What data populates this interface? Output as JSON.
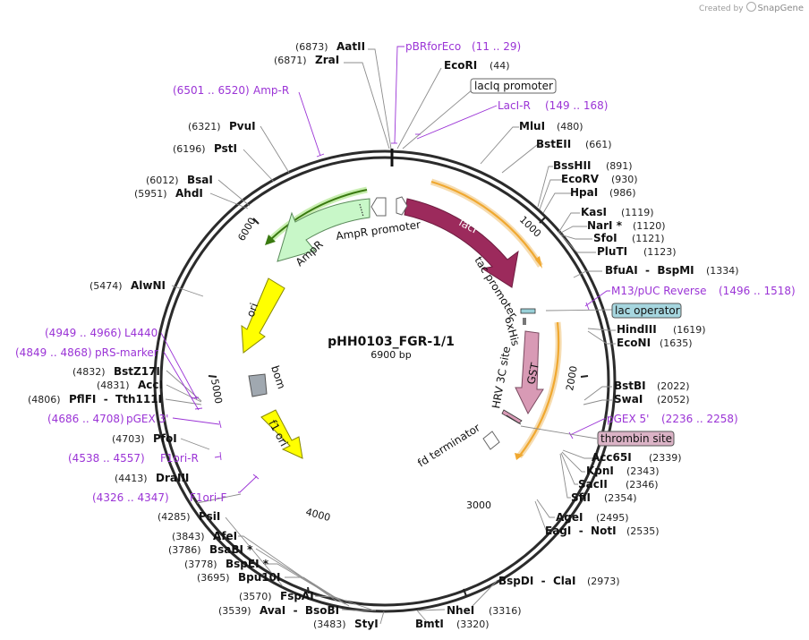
{
  "credit": {
    "prefix": "Created by",
    "brand": "SnapGene"
  },
  "plasmid": {
    "name": "pHH0103_FGR-1/1",
    "size_label": "6900 bp",
    "length": 6900
  },
  "ticks": [
    "1000",
    "2000",
    "3000",
    "4000",
    "5000",
    "6000"
  ],
  "colors": {
    "backbone": "#2b2b2b",
    "primer": "#9b34d6",
    "lacI": "#9c2a5c",
    "ampR": "#c8f7c8",
    "ori": "#ffff00",
    "f1ori": "#ffff00",
    "gst": "#d89ab5",
    "bom": "#a0a8b0",
    "orange_arc": "#f0a830",
    "green_arc": "#3a7a10"
  },
  "sites": [
    {
      "name": "AatII",
      "pos": "(6873)",
      "side": "left"
    },
    {
      "name": "ZraI",
      "pos": "(6871)",
      "side": "left"
    },
    {
      "name": "EcoRI",
      "pos": "(44)",
      "side": "right"
    },
    {
      "name": "MluI",
      "pos": "(480)",
      "side": "right"
    },
    {
      "name": "BstEII",
      "pos": "(661)",
      "side": "right"
    },
    {
      "name": "BssHII",
      "pos": "(891)",
      "side": "right"
    },
    {
      "name": "EcoRV",
      "pos": "(930)",
      "side": "right"
    },
    {
      "name": "HpaI",
      "pos": "(986)",
      "side": "right"
    },
    {
      "name": "KasI",
      "pos": "(1119)",
      "side": "right"
    },
    {
      "name": "NarI *",
      "pos": "(1120)",
      "side": "right"
    },
    {
      "name": "SfoI",
      "pos": "(1121)",
      "side": "right"
    },
    {
      "name": "PluTI",
      "pos": "(1123)",
      "side": "right"
    },
    {
      "name": "BfuAI  -  BspMI",
      "pos": "(1334)",
      "side": "right"
    },
    {
      "name": "HindIII",
      "pos": "(1619)",
      "side": "right"
    },
    {
      "name": "EcoNI",
      "pos": "(1635)",
      "side": "right"
    },
    {
      "name": "BstBI",
      "pos": "(2022)",
      "side": "right"
    },
    {
      "name": "SwaI",
      "pos": "(2052)",
      "side": "right"
    },
    {
      "name": "Acc65I",
      "pos": "(2339)",
      "side": "right"
    },
    {
      "name": "KpnI",
      "pos": "(2343)",
      "side": "right"
    },
    {
      "name": "SacII",
      "pos": "(2346)",
      "side": "right"
    },
    {
      "name": "SfiI",
      "pos": "(2354)",
      "side": "right"
    },
    {
      "name": "AgeI",
      "pos": "(2495)",
      "side": "right"
    },
    {
      "name": "EagI  -  NotI",
      "pos": "(2535)",
      "side": "right"
    },
    {
      "name": "BspDI  -  ClaI",
      "pos": "(2973)",
      "side": "right"
    },
    {
      "name": "NheI",
      "pos": "(3316)",
      "side": "right"
    },
    {
      "name": "BmtI",
      "pos": "(3320)",
      "side": "right"
    },
    {
      "name": "StyI",
      "pos": "(3483)",
      "side": "left"
    },
    {
      "name": "AvaI  -  BsoBI",
      "pos": "(3539)",
      "side": "left"
    },
    {
      "name": "FspAI",
      "pos": "(3570)",
      "side": "left"
    },
    {
      "name": "Bpu10I",
      "pos": "(3695)",
      "side": "left"
    },
    {
      "name": "BspEI *",
      "pos": "(3778)",
      "side": "left"
    },
    {
      "name": "BsaBI *",
      "pos": "(3786)",
      "side": "left"
    },
    {
      "name": "AfeI",
      "pos": "(3843)",
      "side": "left"
    },
    {
      "name": "PsiI",
      "pos": "(4285)",
      "side": "left"
    },
    {
      "name": "DraIII",
      "pos": "(4413)",
      "side": "left"
    },
    {
      "name": "PfoI",
      "pos": "(4703)",
      "side": "left"
    },
    {
      "name": "PflFI  -  Tth111I",
      "pos": "(4806)",
      "side": "left"
    },
    {
      "name": "AccI",
      "pos": "(4831)",
      "side": "left"
    },
    {
      "name": "BstZ17I",
      "pos": "(4832)",
      "side": "left"
    },
    {
      "name": "AlwNI",
      "pos": "(5474)",
      "side": "left"
    },
    {
      "name": "AhdI",
      "pos": "(5951)",
      "side": "left"
    },
    {
      "name": "BsaI",
      "pos": "(6012)",
      "side": "left"
    },
    {
      "name": "PstI",
      "pos": "(6196)",
      "side": "left"
    },
    {
      "name": "PvuI",
      "pos": "(6321)",
      "side": "left"
    }
  ],
  "primers": [
    {
      "name": "pBRforEco",
      "range": "(11 .. 29)"
    },
    {
      "name": "LacI-R",
      "range": "(149 .. 168)"
    },
    {
      "name": "M13/pUC Reverse",
      "range": "(1496 .. 1518)"
    },
    {
      "name": "pGEX 5'",
      "range": "(2236 .. 2258)"
    },
    {
      "name": "F1ori-F",
      "range": "(4326 .. 4347)"
    },
    {
      "name": "F1ori-R",
      "range": "(4538 .. 4557)"
    },
    {
      "name": "pGEX 3'",
      "range": "(4686 .. 4708)"
    },
    {
      "name": "pRS-marker",
      "range": "(4849 .. 4868)"
    },
    {
      "name": "L4440",
      "range": "(4949 .. 4966)"
    },
    {
      "name": "Amp-R",
      "range": "(6501 .. 6520)"
    }
  ],
  "boxed": [
    {
      "name": "lacIq promoter"
    },
    {
      "name": "lac operator"
    },
    {
      "name": "thrombin site"
    }
  ],
  "features": {
    "lacI": "lacI",
    "ampR": "AmpR",
    "ampR_promoter": "AmpR promoter",
    "tac_promoter": "tac promoter",
    "sixhis": "6xHis",
    "hrv": "HRV 3C site",
    "gst": "GST",
    "fd_terminator": "fd terminator",
    "ori": "ori",
    "bom": "bom",
    "f1ori": "f1 ori"
  }
}
